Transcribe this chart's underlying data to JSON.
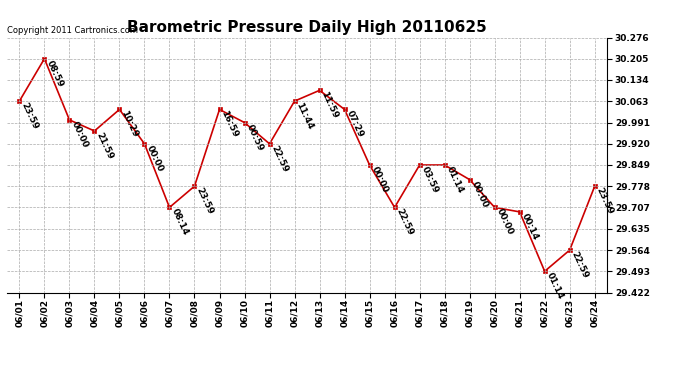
{
  "title": "Barometric Pressure Daily High 20110625",
  "copyright": "Copyright 2011 Cartronics.com",
  "x_labels": [
    "06/01",
    "06/02",
    "06/03",
    "06/04",
    "06/05",
    "06/06",
    "06/07",
    "06/08",
    "06/09",
    "06/10",
    "06/11",
    "06/12",
    "06/13",
    "06/14",
    "06/15",
    "06/16",
    "06/17",
    "06/18",
    "06/19",
    "06/20",
    "06/21",
    "06/22",
    "06/23",
    "06/24"
  ],
  "y_values": [
    30.063,
    30.205,
    30.0,
    29.963,
    30.035,
    29.92,
    29.707,
    29.778,
    30.035,
    29.991,
    29.92,
    30.063,
    30.099,
    30.035,
    29.849,
    29.707,
    29.849,
    29.849,
    29.8,
    29.707,
    29.692,
    29.493,
    29.564,
    29.778
  ],
  "point_labels": [
    "23:59",
    "08:59",
    "00:00",
    "21:59",
    "10:29",
    "00:00",
    "08:14",
    "23:59",
    "16:59",
    "00:59",
    "22:59",
    "11:44",
    "11:59",
    "07:29",
    "00:00",
    "22:59",
    "03:59",
    "01:14",
    "00:00",
    "00:00",
    "00:14",
    "01:14",
    "22:59",
    "23:59"
  ],
  "y_ticks": [
    29.422,
    29.493,
    29.564,
    29.635,
    29.707,
    29.778,
    29.849,
    29.92,
    29.991,
    30.063,
    30.134,
    30.205,
    30.276
  ],
  "y_min": 29.422,
  "y_max": 30.276,
  "line_color": "#cc0000",
  "marker_color": "#cc0000",
  "marker_face": "#cc0000",
  "background_color": "#ffffff",
  "grid_color": "#aaaaaa",
  "title_fontsize": 11,
  "label_fontsize": 6.5,
  "tick_fontsize": 6.5,
  "copyright_fontsize": 6.0
}
